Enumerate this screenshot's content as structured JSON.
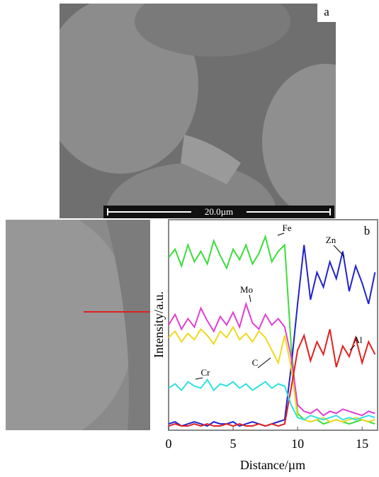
{
  "figure": {
    "panel_a": "a",
    "scale_bar": "20.0µm"
  },
  "chart_data": {
    "type": "line",
    "panel_label": "b",
    "xlabel": "Distance/µm",
    "ylabel": "Intensity/a.u.",
    "xlim": [
      0,
      16.2
    ],
    "ylim": [
      0,
      100
    ],
    "xticks": [
      0,
      5,
      10,
      15
    ],
    "x": [
      0,
      0.5,
      1,
      1.5,
      2,
      2.5,
      3,
      3.5,
      4,
      4.5,
      5,
      5.5,
      6,
      6.5,
      7,
      7.5,
      8,
      8.5,
      9,
      9.5,
      10,
      10.5,
      11,
      11.5,
      12,
      12.5,
      13,
      13.5,
      14,
      14.5,
      15,
      15.5,
      16
    ],
    "series": [
      {
        "name": "Fe",
        "color": "#3ddc3d",
        "values": [
          82,
          86,
          78,
          88,
          80,
          85,
          79,
          90,
          83,
          77,
          86,
          81,
          88,
          79,
          84,
          92,
          80,
          85,
          88,
          40,
          8,
          5,
          4,
          5,
          3,
          4,
          5,
          4,
          3,
          4,
          5,
          4,
          3
        ]
      },
      {
        "name": "Zn",
        "color": "#2222d0",
        "values": [
          3,
          4,
          2,
          3,
          4,
          3,
          2,
          4,
          3,
          3,
          4,
          2,
          3,
          4,
          3,
          2,
          3,
          4,
          5,
          30,
          60,
          88,
          62,
          75,
          68,
          80,
          72,
          85,
          66,
          78,
          70,
          60,
          75
        ]
      },
      {
        "name": "Mo",
        "color": "#e040d0",
        "values": [
          50,
          55,
          48,
          53,
          49,
          58,
          52,
          47,
          54,
          50,
          56,
          49,
          60,
          51,
          48,
          55,
          50,
          53,
          49,
          35,
          12,
          9,
          8,
          10,
          7,
          9,
          8,
          10,
          9,
          8,
          7,
          9,
          8
        ]
      },
      {
        "name": "C",
        "color": "#f0d820",
        "values": [
          44,
          47,
          42,
          46,
          43,
          48,
          45,
          41,
          47,
          44,
          49,
          43,
          46,
          42,
          47,
          44,
          38,
          32,
          45,
          30,
          6,
          5,
          4,
          5,
          6,
          4,
          5,
          4,
          5,
          6,
          5,
          4,
          5
        ]
      },
      {
        "name": "Al",
        "color": "#e02020",
        "values": [
          2,
          3,
          2,
          2,
          3,
          2,
          3,
          2,
          2,
          3,
          2,
          3,
          2,
          2,
          3,
          2,
          3,
          2,
          3,
          20,
          38,
          45,
          33,
          42,
          36,
          48,
          30,
          40,
          35,
          44,
          32,
          42,
          36
        ]
      },
      {
        "name": "Cr",
        "color": "#30e0e0",
        "values": [
          20,
          22,
          19,
          23,
          21,
          20,
          24,
          19,
          22,
          21,
          23,
          20,
          22,
          19,
          21,
          23,
          20,
          22,
          21,
          12,
          6,
          5,
          7,
          6,
          5,
          6,
          7,
          5,
          6,
          5,
          6,
          7,
          6
        ]
      }
    ]
  }
}
